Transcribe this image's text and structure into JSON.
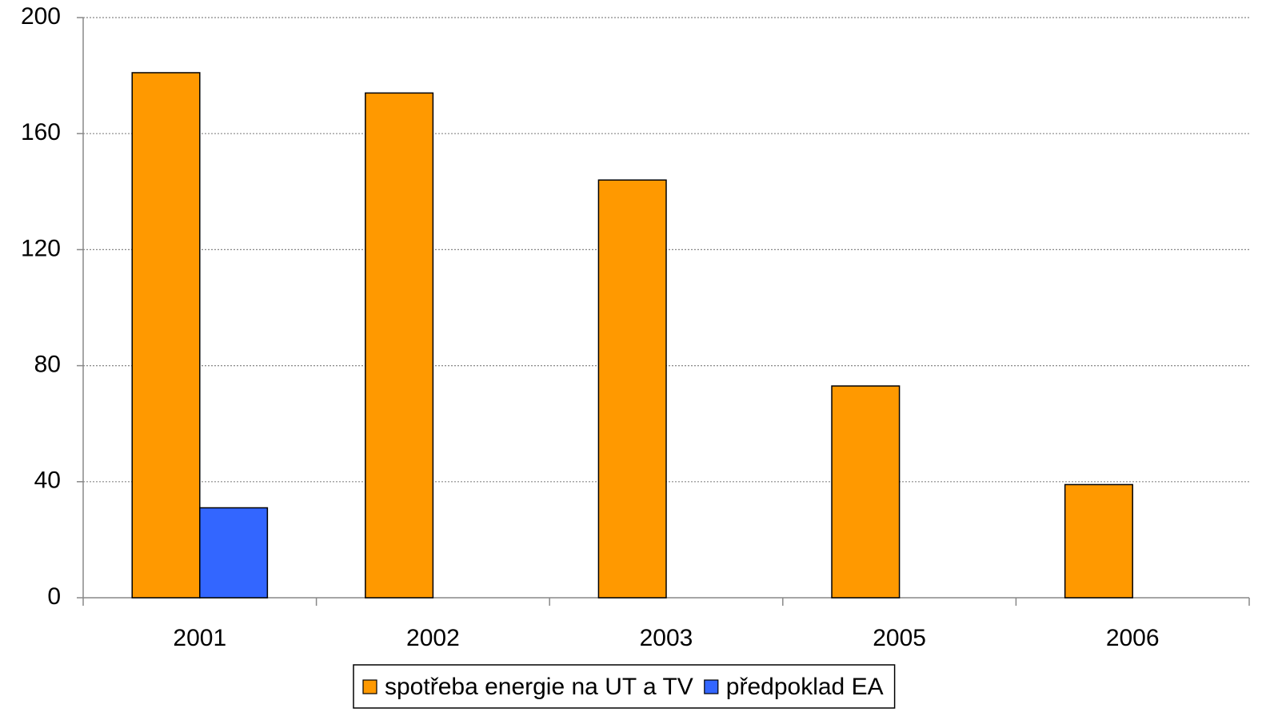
{
  "chart_data": {
    "type": "bar",
    "categories": [
      "2001",
      "2002",
      "2003",
      "2005",
      "2006"
    ],
    "series": [
      {
        "name": "spotřeba energie na UT a TV",
        "color": "#ff9900",
        "values": [
          181,
          174,
          144,
          73,
          39
        ]
      },
      {
        "name": "předpoklad EA",
        "color": "#3366ff",
        "values": [
          31,
          null,
          null,
          null,
          null
        ]
      }
    ],
    "ylim": [
      0,
      200
    ],
    "yticks": [
      0,
      40,
      80,
      120,
      160,
      200
    ],
    "grid": true,
    "legend": "bottom"
  }
}
